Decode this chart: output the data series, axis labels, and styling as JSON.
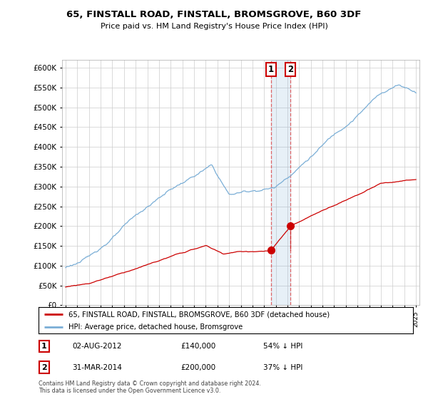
{
  "title": "65, FINSTALL ROAD, FINSTALL, BROMSGROVE, B60 3DF",
  "subtitle": "Price paid vs. HM Land Registry's House Price Index (HPI)",
  "legend_property": "65, FINSTALL ROAD, FINSTALL, BROMSGROVE, B60 3DF (detached house)",
  "legend_hpi": "HPI: Average price, detached house, Bromsgrove",
  "sale1_date": "02-AUG-2012",
  "sale1_price": 140000,
  "sale1_pct": "54% ↓ HPI",
  "sale2_date": "31-MAR-2014",
  "sale2_price": 200000,
  "sale2_pct": "37% ↓ HPI",
  "footer": "Contains HM Land Registry data © Crown copyright and database right 2024.\nThis data is licensed under the Open Government Licence v3.0.",
  "ylim": [
    0,
    620000
  ],
  "yticks": [
    0,
    50000,
    100000,
    150000,
    200000,
    250000,
    300000,
    350000,
    400000,
    450000,
    500000,
    550000,
    600000
  ],
  "property_color": "#cc0000",
  "hpi_color": "#7aaed6",
  "sale1_year": 2012.583,
  "sale2_year": 2014.25,
  "background_color": "#ffffff",
  "grid_color": "#cccccc"
}
